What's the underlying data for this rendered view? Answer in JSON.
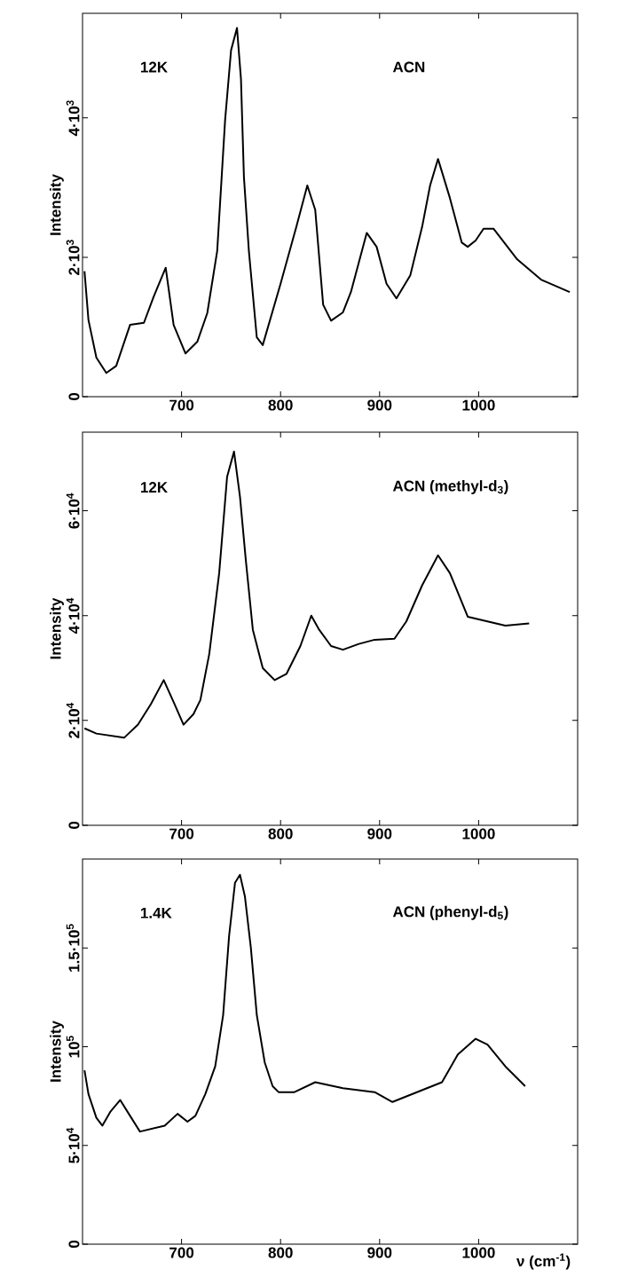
{
  "chart_data": [
    {
      "type": "line",
      "ylabel": "Intensity",
      "annotations": [
        "12K",
        "ACN"
      ],
      "xlim": [
        600,
        1100
      ],
      "ylim": [
        0,
        5500
      ],
      "xticks": [
        700,
        800,
        900,
        1000
      ],
      "yticks": [
        0,
        {
          "value": 2000,
          "label": "2·10$^{3}$"
        },
        {
          "value": 4000,
          "label": "4·10$^{3}$"
        }
      ],
      "series": [
        {
          "color": "#000000",
          "x": [
            602,
            606,
            614,
            624,
            634,
            648,
            662,
            672,
            684,
            692,
            704,
            716,
            726,
            736,
            744,
            750,
            756,
            760,
            763,
            768,
            776,
            782,
            800,
            816,
            827,
            835,
            843,
            851,
            863,
            871,
            887,
            897,
            907,
            917,
            931,
            943,
            951,
            959,
            971,
            983,
            989,
            997,
            1005,
            1015,
            1039,
            1063,
            1092
          ],
          "values": [
            1800,
            1100,
            560,
            340,
            440,
            1030,
            1060,
            1440,
            1850,
            1030,
            620,
            790,
            1200,
            2090,
            3970,
            4970,
            5290,
            4560,
            3150,
            2090,
            850,
            740,
            1620,
            2440,
            3030,
            2680,
            1320,
            1090,
            1210,
            1500,
            2350,
            2150,
            1620,
            1410,
            1740,
            2440,
            3030,
            3410,
            2850,
            2210,
            2150,
            2240,
            2410,
            2410,
            1970,
            1680,
            1500
          ]
        }
      ]
    },
    {
      "type": "line",
      "ylabel": "Intensity",
      "annotations": [
        "12K",
        "ACN (methyl-d$_{3}$)"
      ],
      "xlim": [
        600,
        1100
      ],
      "ylim": [
        0,
        75000
      ],
      "xticks": [
        700,
        800,
        900,
        1000
      ],
      "yticks": [
        0,
        {
          "value": 20000,
          "label": "2·10$^{4}$"
        },
        {
          "value": 40000,
          "label": "4·10$^{4}$"
        },
        {
          "value": 60000,
          "label": "6·10$^{4}$"
        }
      ],
      "series": [
        {
          "color": "#000000",
          "x": [
            602,
            614,
            642,
            656,
            669,
            682,
            692,
            702,
            712,
            719,
            728,
            738,
            746,
            753,
            759,
            765,
            772,
            782,
            794,
            806,
            820,
            831,
            839,
            851,
            863,
            879,
            895,
            915,
            927,
            943,
            959,
            971,
            989,
            1027,
            1051
          ],
          "values": [
            18500,
            17500,
            16700,
            19200,
            23100,
            27700,
            23500,
            19200,
            21200,
            23900,
            32700,
            48100,
            66500,
            71300,
            62700,
            50400,
            37300,
            30000,
            27700,
            28900,
            34200,
            40000,
            37300,
            34200,
            33500,
            34600,
            35400,
            35600,
            38900,
            45800,
            51500,
            48100,
            39800,
            38100,
            38500
          ]
        }
      ]
    },
    {
      "type": "line",
      "ylabel": "Intensity",
      "xlabel": "ν (cm$^{-1}$)",
      "annotations": [
        "1.4K",
        "ACN (phenyl-d$_{5}$)"
      ],
      "xlim": [
        600,
        1100
      ],
      "ylim": [
        0,
        195000
      ],
      "xticks": [
        700,
        800,
        900,
        1000
      ],
      "yticks": [
        0,
        {
          "value": 50000,
          "label": "5·10$^{4}$"
        },
        {
          "value": 100000,
          "label": "10$^{5}$"
        },
        {
          "value": 150000,
          "label": "1.5·10$^{5}$"
        }
      ],
      "series": [
        {
          "color": "#000000",
          "x": [
            602,
            606,
            614,
            620,
            628,
            638,
            648,
            658,
            683,
            696,
            706,
            714,
            724,
            734,
            742,
            748,
            754,
            759,
            764,
            770,
            776,
            784,
            792,
            798,
            814,
            835,
            863,
            895,
            913,
            963,
            979,
            997,
            1009,
            1027,
            1047
          ],
          "values": [
            88000,
            76000,
            64000,
            60000,
            67000,
            73000,
            65000,
            57000,
            60000,
            66000,
            62000,
            65000,
            76000,
            90000,
            116000,
            156000,
            183000,
            187000,
            176000,
            150000,
            116000,
            92000,
            80000,
            77000,
            77000,
            82000,
            79000,
            77000,
            72000,
            82000,
            96000,
            104000,
            101000,
            90000,
            80000
          ]
        }
      ]
    }
  ]
}
